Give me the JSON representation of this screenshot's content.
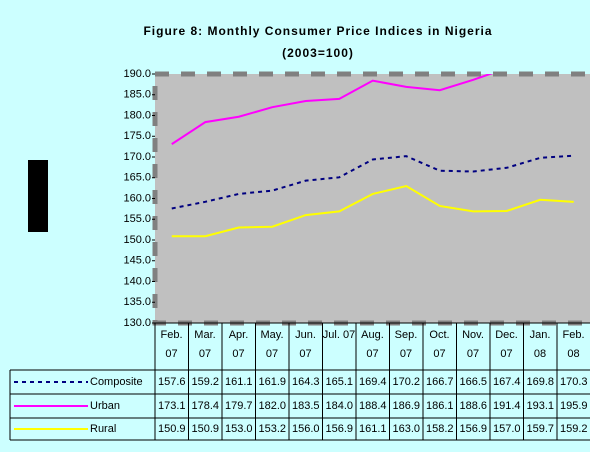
{
  "chart_data": {
    "type": "line",
    "title": "Figure 8: Monthly Consumer Price Indices in Nigeria",
    "subtitle": "(2003=100)",
    "categories": [
      "Feb. 07",
      "Mar. 07",
      "Apr. 07",
      "May. 07",
      "Jun. 07",
      "Jul. 07",
      "Aug. 07",
      "Sep. 07",
      "Oct. 07",
      "Nov. 07",
      "Dec. 07",
      "Jan. 08",
      "Feb. 08"
    ],
    "series": [
      {
        "name": "Composite",
        "color": "#000080",
        "dashed": true,
        "values": [
          157.6,
          159.2,
          161.1,
          161.9,
          164.3,
          165.1,
          169.4,
          170.2,
          166.7,
          166.5,
          167.4,
          169.8,
          170.3
        ],
        "value_labels": [
          "157.6",
          "159.2",
          "161.1",
          "161.9",
          "164.3",
          "165.1",
          "169.4",
          "170.2",
          "166.7",
          "166.5",
          "167.4",
          "169.8",
          "170.3"
        ]
      },
      {
        "name": "Urban",
        "color": "#ff00ff",
        "dashed": false,
        "values": [
          173.1,
          178.4,
          179.7,
          182.0,
          183.5,
          184.0,
          188.4,
          186.9,
          186.1,
          188.6,
          191.4,
          193.1,
          195.9
        ],
        "value_labels": [
          "173.1",
          "178.4",
          "179.7",
          "182.0",
          "183.5",
          "184.0",
          "188.4",
          "186.9",
          "186.1",
          "188.6",
          "191.4",
          "193.1",
          "195.9"
        ]
      },
      {
        "name": "Rural",
        "color": "#ffff00",
        "dashed": false,
        "values": [
          150.9,
          150.9,
          153.0,
          153.2,
          156.0,
          156.9,
          161.1,
          163.0,
          158.2,
          156.9,
          157.0,
          159.7,
          159.2
        ],
        "value_labels": [
          "150.9",
          "150.9",
          "153.0",
          "153.2",
          "156.0",
          "156.9",
          "161.1",
          "163.0",
          "158.2",
          "156.9",
          "157.0",
          "159.7",
          "159.2"
        ]
      }
    ],
    "ylim": [
      130,
      190
    ],
    "yticks": [
      {
        "value": 130,
        "label": "130.0"
      },
      {
        "value": 135,
        "label": "135.0"
      },
      {
        "value": 140,
        "label": "140.0"
      },
      {
        "value": 145,
        "label": "145.0"
      },
      {
        "value": 150,
        "label": "150.0"
      },
      {
        "value": 155,
        "label": "155.0"
      },
      {
        "value": 160,
        "label": "160.0"
      },
      {
        "value": 165,
        "label": "165.0"
      },
      {
        "value": 170,
        "label": "170.0"
      },
      {
        "value": 175,
        "label": "175.0"
      },
      {
        "value": 180,
        "label": "180.0"
      },
      {
        "value": 185,
        "label": "185.0"
      },
      {
        "value": 190,
        "label": "190.0"
      }
    ],
    "grid": false
  }
}
